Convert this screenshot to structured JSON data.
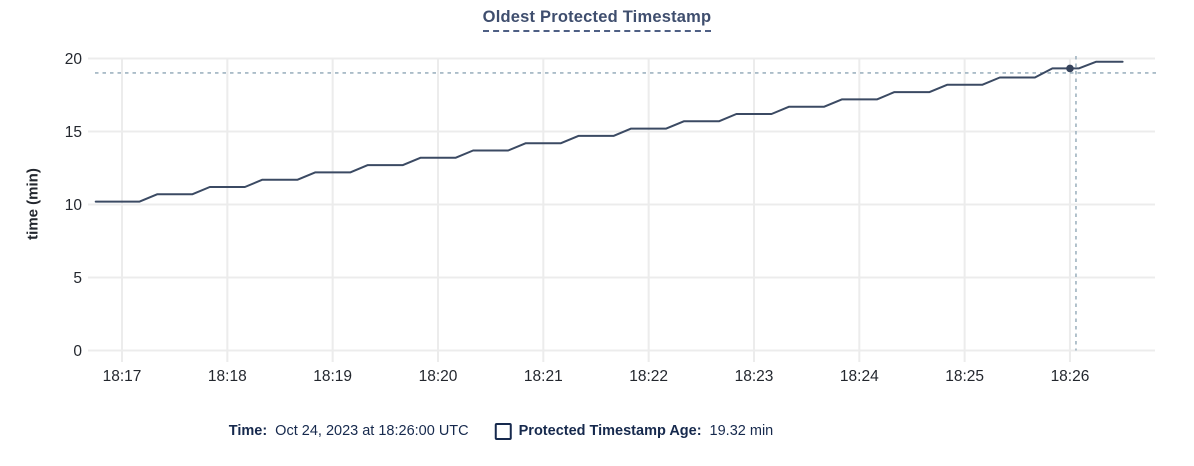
{
  "title": "Oldest Protected Timestamp",
  "colors": {
    "line": "#3b4a63",
    "point": "#36435c",
    "crosshair": "#9fb3c0",
    "grid": "#ececec",
    "title_text": "#3f4e6e",
    "legend_text": "#16294d",
    "axis_text": "#23272e"
  },
  "chart_data": {
    "type": "line",
    "title": "Oldest Protected Timestamp",
    "xlabel": "",
    "ylabel": "time (min)",
    "ylim": [
      0,
      20
    ],
    "yticks": [
      0,
      5,
      10,
      15,
      20
    ],
    "xticks": [
      "18:17",
      "18:18",
      "18:19",
      "18:20",
      "18:21",
      "18:22",
      "18:23",
      "18:24",
      "18:25",
      "18:26"
    ],
    "x_tick_interval": "1 min",
    "grid": true,
    "legend_position": "bottom",
    "series": [
      {
        "name": "Protected Timestamp Age",
        "unit": "min",
        "x_unit": "seconds after 18:17:00",
        "points": [
          [
            -15,
            10.2
          ],
          [
            10,
            10.2
          ],
          [
            20,
            10.7
          ],
          [
            40,
            10.7
          ],
          [
            50,
            11.2
          ],
          [
            70,
            11.2
          ],
          [
            80,
            11.7
          ],
          [
            100,
            11.7
          ],
          [
            110,
            12.2
          ],
          [
            130,
            12.2
          ],
          [
            140,
            12.7
          ],
          [
            160,
            12.7
          ],
          [
            170,
            13.2
          ],
          [
            190,
            13.2
          ],
          [
            200,
            13.7
          ],
          [
            220,
            13.7
          ],
          [
            230,
            14.2
          ],
          [
            250,
            14.2
          ],
          [
            260,
            14.7
          ],
          [
            280,
            14.7
          ],
          [
            290,
            15.2
          ],
          [
            310,
            15.2
          ],
          [
            320,
            15.7
          ],
          [
            340,
            15.7
          ],
          [
            350,
            16.2
          ],
          [
            370,
            16.2
          ],
          [
            380,
            16.7
          ],
          [
            400,
            16.7
          ],
          [
            410,
            17.2
          ],
          [
            430,
            17.2
          ],
          [
            440,
            17.7
          ],
          [
            460,
            17.7
          ],
          [
            470,
            18.2
          ],
          [
            490,
            18.2
          ],
          [
            500,
            18.7
          ],
          [
            520,
            18.7
          ],
          [
            530,
            19.32
          ],
          [
            545,
            19.32
          ],
          [
            555,
            19.78
          ],
          [
            570,
            19.78
          ]
        ]
      }
    ],
    "hover_point": {
      "t_seconds": 540,
      "time": "18:26:00",
      "value_min": 19.32
    }
  },
  "legend": {
    "time_label": "Time:",
    "time_value": "Oct 24, 2023 at 18:26:00 UTC",
    "series_label": "Protected Timestamp Age:",
    "series_value": "19.32 min"
  }
}
